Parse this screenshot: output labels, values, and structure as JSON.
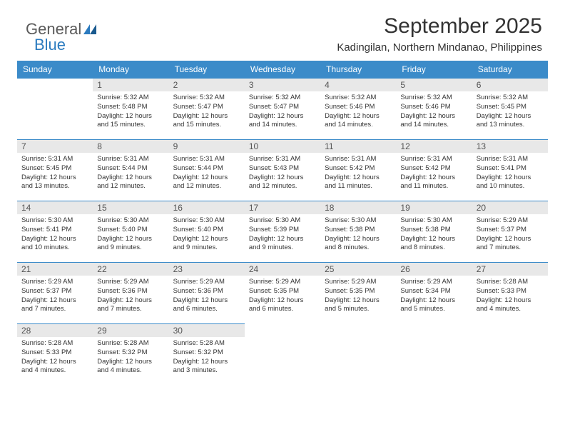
{
  "logo": {
    "general": "General",
    "blue": "Blue"
  },
  "header": {
    "month_title": "September 2025",
    "location": "Kadingilan, Northern Mindanao, Philippines"
  },
  "calendar": {
    "header_bg": "#3b8bc9",
    "header_text_color": "#ffffff",
    "daynum_bg": "#e8e8e8",
    "daynum_color": "#555555",
    "border_color": "#3b8bc9",
    "content_color": "#333333",
    "days_of_week": [
      "Sunday",
      "Monday",
      "Tuesday",
      "Wednesday",
      "Thursday",
      "Friday",
      "Saturday"
    ],
    "first_day_index": 1,
    "days": [
      {
        "n": "1",
        "sunrise": "5:32 AM",
        "sunset": "5:48 PM",
        "daylight": "12 hours and 15 minutes."
      },
      {
        "n": "2",
        "sunrise": "5:32 AM",
        "sunset": "5:47 PM",
        "daylight": "12 hours and 15 minutes."
      },
      {
        "n": "3",
        "sunrise": "5:32 AM",
        "sunset": "5:47 PM",
        "daylight": "12 hours and 14 minutes."
      },
      {
        "n": "4",
        "sunrise": "5:32 AM",
        "sunset": "5:46 PM",
        "daylight": "12 hours and 14 minutes."
      },
      {
        "n": "5",
        "sunrise": "5:32 AM",
        "sunset": "5:46 PM",
        "daylight": "12 hours and 14 minutes."
      },
      {
        "n": "6",
        "sunrise": "5:32 AM",
        "sunset": "5:45 PM",
        "daylight": "12 hours and 13 minutes."
      },
      {
        "n": "7",
        "sunrise": "5:31 AM",
        "sunset": "5:45 PM",
        "daylight": "12 hours and 13 minutes."
      },
      {
        "n": "8",
        "sunrise": "5:31 AM",
        "sunset": "5:44 PM",
        "daylight": "12 hours and 12 minutes."
      },
      {
        "n": "9",
        "sunrise": "5:31 AM",
        "sunset": "5:44 PM",
        "daylight": "12 hours and 12 minutes."
      },
      {
        "n": "10",
        "sunrise": "5:31 AM",
        "sunset": "5:43 PM",
        "daylight": "12 hours and 12 minutes."
      },
      {
        "n": "11",
        "sunrise": "5:31 AM",
        "sunset": "5:42 PM",
        "daylight": "12 hours and 11 minutes."
      },
      {
        "n": "12",
        "sunrise": "5:31 AM",
        "sunset": "5:42 PM",
        "daylight": "12 hours and 11 minutes."
      },
      {
        "n": "13",
        "sunrise": "5:31 AM",
        "sunset": "5:41 PM",
        "daylight": "12 hours and 10 minutes."
      },
      {
        "n": "14",
        "sunrise": "5:30 AM",
        "sunset": "5:41 PM",
        "daylight": "12 hours and 10 minutes."
      },
      {
        "n": "15",
        "sunrise": "5:30 AM",
        "sunset": "5:40 PM",
        "daylight": "12 hours and 9 minutes."
      },
      {
        "n": "16",
        "sunrise": "5:30 AM",
        "sunset": "5:40 PM",
        "daylight": "12 hours and 9 minutes."
      },
      {
        "n": "17",
        "sunrise": "5:30 AM",
        "sunset": "5:39 PM",
        "daylight": "12 hours and 9 minutes."
      },
      {
        "n": "18",
        "sunrise": "5:30 AM",
        "sunset": "5:38 PM",
        "daylight": "12 hours and 8 minutes."
      },
      {
        "n": "19",
        "sunrise": "5:30 AM",
        "sunset": "5:38 PM",
        "daylight": "12 hours and 8 minutes."
      },
      {
        "n": "20",
        "sunrise": "5:29 AM",
        "sunset": "5:37 PM",
        "daylight": "12 hours and 7 minutes."
      },
      {
        "n": "21",
        "sunrise": "5:29 AM",
        "sunset": "5:37 PM",
        "daylight": "12 hours and 7 minutes."
      },
      {
        "n": "22",
        "sunrise": "5:29 AM",
        "sunset": "5:36 PM",
        "daylight": "12 hours and 7 minutes."
      },
      {
        "n": "23",
        "sunrise": "5:29 AM",
        "sunset": "5:36 PM",
        "daylight": "12 hours and 6 minutes."
      },
      {
        "n": "24",
        "sunrise": "5:29 AM",
        "sunset": "5:35 PM",
        "daylight": "12 hours and 6 minutes."
      },
      {
        "n": "25",
        "sunrise": "5:29 AM",
        "sunset": "5:35 PM",
        "daylight": "12 hours and 5 minutes."
      },
      {
        "n": "26",
        "sunrise": "5:29 AM",
        "sunset": "5:34 PM",
        "daylight": "12 hours and 5 minutes."
      },
      {
        "n": "27",
        "sunrise": "5:28 AM",
        "sunset": "5:33 PM",
        "daylight": "12 hours and 4 minutes."
      },
      {
        "n": "28",
        "sunrise": "5:28 AM",
        "sunset": "5:33 PM",
        "daylight": "12 hours and 4 minutes."
      },
      {
        "n": "29",
        "sunrise": "5:28 AM",
        "sunset": "5:32 PM",
        "daylight": "12 hours and 4 minutes."
      },
      {
        "n": "30",
        "sunrise": "5:28 AM",
        "sunset": "5:32 PM",
        "daylight": "12 hours and 3 minutes."
      }
    ]
  },
  "labels": {
    "sunrise": "Sunrise: ",
    "sunset": "Sunset: ",
    "daylight": "Daylight: "
  }
}
